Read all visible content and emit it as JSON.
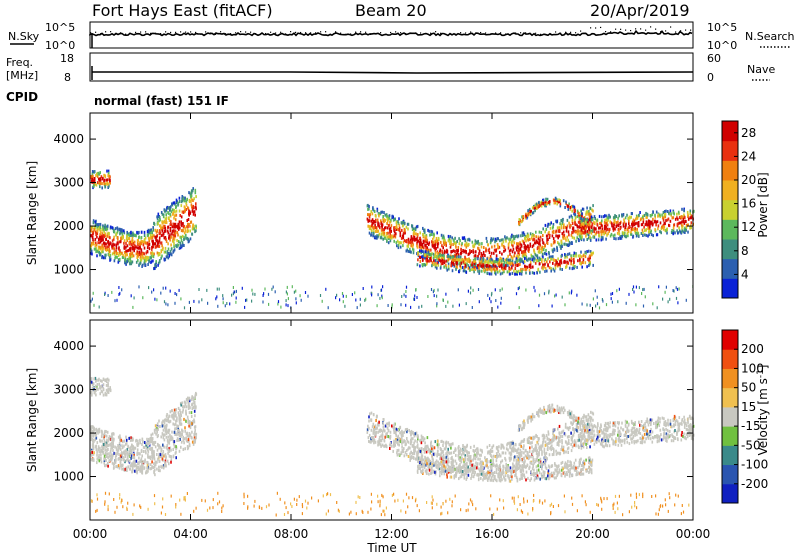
{
  "header": {
    "station": "Fort Hays East (fitACF)",
    "beam": "Beam 20",
    "date": "20/Apr/2019"
  },
  "top_panels": {
    "nsky_label": "N.Sky",
    "nsearch_label": "N.Search",
    "noise_ticks": [
      "10^5",
      "10^0"
    ],
    "freq_label_line1": "Freq.",
    "freq_label_line2": "[MHz]",
    "freq_ticks": [
      "18",
      "8"
    ],
    "nave_label": "Nave",
    "nave_ticks": [
      "60",
      "0"
    ],
    "cpid_label": "CPID",
    "cpid_text": "normal (fast) 151 IF"
  },
  "time_axis": {
    "label": "Time UT",
    "ticks": [
      "00:00",
      "04:00",
      "08:00",
      "12:00",
      "16:00",
      "20:00",
      "00:00"
    ]
  },
  "chart_data": [
    {
      "type": "heatmap",
      "title": "",
      "xlabel": "Time UT",
      "ylabel": "Slant Range [km]",
      "x_range_hours": [
        0,
        24
      ],
      "ylim": [
        0,
        4600
      ],
      "y_ticks": [
        "1000",
        "2000",
        "3000",
        "4000"
      ],
      "colorbar": {
        "label": "Power [dB]",
        "ticks": [
          "4",
          "8",
          "12",
          "16",
          "20",
          "24",
          "28"
        ],
        "range": [
          0,
          30
        ],
        "colors": [
          "#0a22d6",
          "#2b5fb0",
          "#3e8e7e",
          "#5cb85c",
          "#c8d030",
          "#f0b020",
          "#f08010",
          "#e83010",
          "#d00000"
        ]
      }
    },
    {
      "type": "heatmap",
      "title": "",
      "xlabel": "Time UT",
      "ylabel": "Slant Range [km]",
      "x_range_hours": [
        0,
        24
      ],
      "ylim": [
        0,
        4600
      ],
      "y_ticks": [
        "1000",
        "2000",
        "3000",
        "4000"
      ],
      "colorbar": {
        "label": "Velocity [m s^-1]",
        "ticks": [
          "200",
          "100",
          "50",
          "15",
          "-15",
          "-50",
          "-100",
          "-200"
        ],
        "colors": [
          "#1020c0",
          "#2a55b0",
          "#3a8a8a",
          "#70c040",
          "#c8c8c0",
          "#f0c050",
          "#f09020",
          "#f05010",
          "#e00000"
        ]
      }
    }
  ]
}
